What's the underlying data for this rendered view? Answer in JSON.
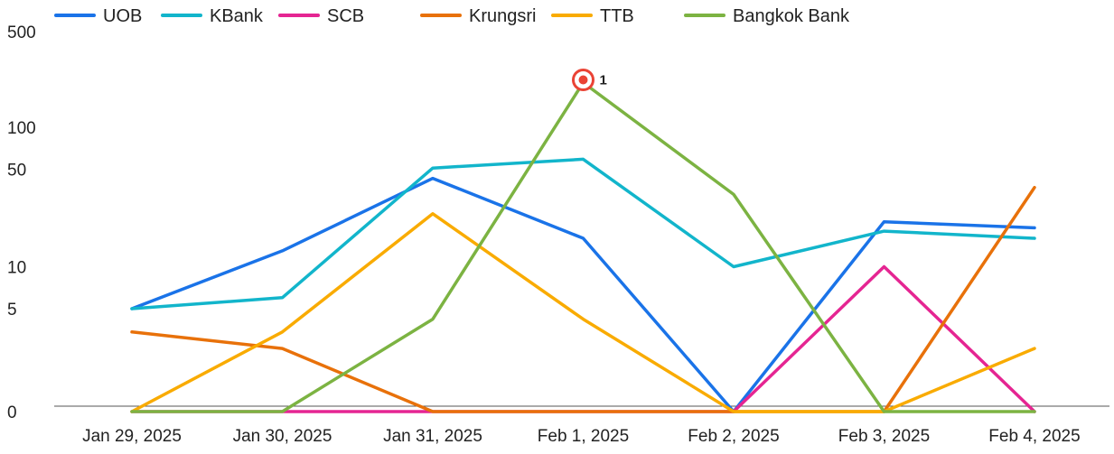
{
  "chart_data": {
    "type": "line",
    "title": "",
    "xlabel": "",
    "ylabel": "",
    "y_scale": "symlog",
    "ylim": [
      0,
      500
    ],
    "y_ticks": [
      0,
      5,
      10,
      50,
      100,
      500
    ],
    "y_tick_labels": [
      "0",
      "5",
      "10",
      "50",
      "100",
      "500"
    ],
    "categories": [
      "Jan 29, 2025",
      "Jan 30, 2025",
      "Jan 31, 2025",
      "Feb 1, 2025",
      "Feb 2, 2025",
      "Feb 3, 2025",
      "Feb 4, 2025"
    ],
    "legend_position": "top-left",
    "grid": false,
    "series": [
      {
        "name": "UOB",
        "color": "#1a73e8",
        "values": [
          5,
          13,
          43,
          16,
          0,
          21,
          19
        ]
      },
      {
        "name": "KBank",
        "color": "#12b5cb",
        "values": [
          5,
          6,
          51,
          59,
          10,
          18,
          16
        ]
      },
      {
        "name": "SCB",
        "color": "#e52592",
        "values": [
          0,
          0,
          0,
          0,
          0,
          10,
          0
        ]
      },
      {
        "name": "Krungsri",
        "color": "#e8710a",
        "values": [
          3,
          2,
          0,
          0,
          0,
          0,
          37
        ]
      },
      {
        "name": "TTB",
        "color": "#f9ab00",
        "values": [
          0,
          3,
          24,
          4,
          0,
          0,
          2
        ]
      },
      {
        "name": "Bangkok Bank",
        "color": "#7cb342",
        "values": [
          0,
          0,
          4,
          212,
          33,
          0,
          0
        ]
      }
    ],
    "annotations": [
      {
        "label": "1",
        "category": "Feb 1, 2025",
        "value": 212,
        "color": "#ea4335"
      }
    ]
  }
}
